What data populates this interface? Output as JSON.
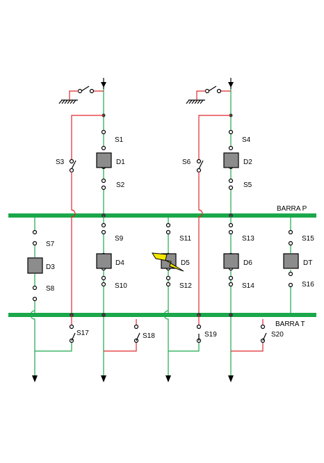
{
  "buses": {
    "p": "BARRA P",
    "t": "BARRA T"
  },
  "breakers": [
    "D1",
    "D2",
    "D3",
    "D4",
    "D5",
    "D6",
    "DT"
  ],
  "switches": [
    "S1",
    "S2",
    "S3",
    "S4",
    "S5",
    "S6",
    "S7",
    "S8",
    "S9",
    "S10",
    "S11",
    "S12",
    "S13",
    "S14",
    "S15",
    "S16",
    "S17",
    "S18",
    "S19",
    "S20"
  ],
  "colors": {
    "green": "#1aa84a",
    "red": "#e0282c",
    "breaker": "#8c8c8c",
    "fault": "#f5e600"
  },
  "fault": {
    "on": "D5",
    "icon": "lightning-bolt-icon"
  }
}
